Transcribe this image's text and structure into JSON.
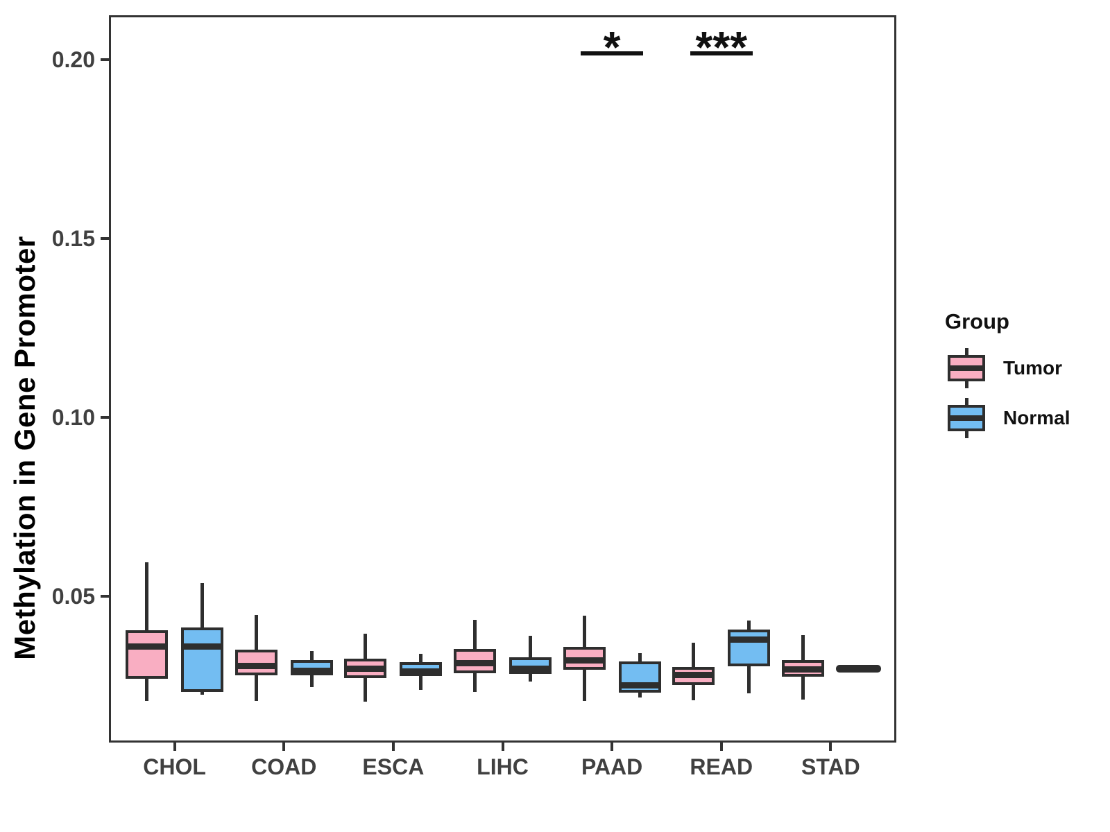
{
  "chart_data": {
    "type": "boxplot",
    "title": "",
    "xlabel": "",
    "ylabel": "Methylation in Gene Promoter",
    "ylim": [
      0.0092,
      0.2124
    ],
    "grid": false,
    "yticks": [
      {
        "value": 0.05,
        "label": "0.05"
      },
      {
        "value": 0.1,
        "label": "0.10"
      },
      {
        "value": 0.15,
        "label": "0.15"
      },
      {
        "value": 0.2,
        "label": "0.20"
      }
    ],
    "categories": [
      "CHOL",
      "COAD",
      "ESCA",
      "LIHC",
      "PAAD",
      "READ",
      "STAD"
    ],
    "legend": {
      "title": "Group",
      "position": "right",
      "entries": [
        "Tumor",
        "Normal"
      ]
    },
    "colors": {
      "tumor_fill": "#F9AEC2",
      "normal_fill": "#73BDF2",
      "box_line": "#2E2E2E",
      "axis_text": "#404040",
      "axis_line": "#333333",
      "background": "#FFFFFF"
    },
    "series": [
      {
        "name": "Tumor",
        "fill": "#F9AEC2",
        "boxes": [
          {
            "category": "CHOL",
            "low": 0.0209,
            "q1": 0.027,
            "median": 0.036,
            "q3": 0.0405,
            "high": 0.0595
          },
          {
            "category": "COAD",
            "low": 0.0209,
            "q1": 0.028,
            "median": 0.0307,
            "q3": 0.0351,
            "high": 0.0448
          },
          {
            "category": "ESCA",
            "low": 0.0207,
            "q1": 0.0272,
            "median": 0.0299,
            "q3": 0.0326,
            "high": 0.0396
          },
          {
            "category": "LIHC",
            "low": 0.0233,
            "q1": 0.0286,
            "median": 0.0314,
            "q3": 0.0353,
            "high": 0.0434
          },
          {
            "category": "PAAD",
            "low": 0.0209,
            "q1": 0.0295,
            "median": 0.0321,
            "q3": 0.036,
            "high": 0.0447
          },
          {
            "category": "READ",
            "low": 0.0211,
            "q1": 0.0252,
            "median": 0.028,
            "q3": 0.0304,
            "high": 0.037
          },
          {
            "category": "STAD",
            "low": 0.0213,
            "q1": 0.0276,
            "median": 0.0296,
            "q3": 0.0323,
            "high": 0.0392
          }
        ]
      },
      {
        "name": "Normal",
        "fill": "#73BDF2",
        "boxes": [
          {
            "category": "CHOL",
            "low": 0.0226,
            "q1": 0.0233,
            "median": 0.036,
            "q3": 0.0413,
            "high": 0.0537
          },
          {
            "category": "COAD",
            "low": 0.0247,
            "q1": 0.0279,
            "median": 0.0292,
            "q3": 0.0323,
            "high": 0.0347
          },
          {
            "category": "ESCA",
            "low": 0.0239,
            "q1": 0.0277,
            "median": 0.029,
            "q3": 0.0316,
            "high": 0.0339
          },
          {
            "category": "LIHC",
            "low": 0.0263,
            "q1": 0.0283,
            "median": 0.0298,
            "q3": 0.033,
            "high": 0.039
          },
          {
            "category": "PAAD",
            "low": 0.0217,
            "q1": 0.0231,
            "median": 0.0252,
            "q3": 0.0319,
            "high": 0.0342
          },
          {
            "category": "READ",
            "low": 0.023,
            "q1": 0.0306,
            "median": 0.0379,
            "q3": 0.0407,
            "high": 0.0432
          },
          {
            "category": "STAD",
            "low": 0.0299,
            "q1": 0.0299,
            "median": 0.0299,
            "q3": 0.0299,
            "high": 0.0299,
            "flat": true
          }
        ]
      }
    ],
    "significance": [
      {
        "category": "PAAD",
        "label": "*",
        "bar_y": 0.2023
      },
      {
        "category": "READ",
        "label": "***",
        "bar_y": 0.2023
      }
    ]
  }
}
